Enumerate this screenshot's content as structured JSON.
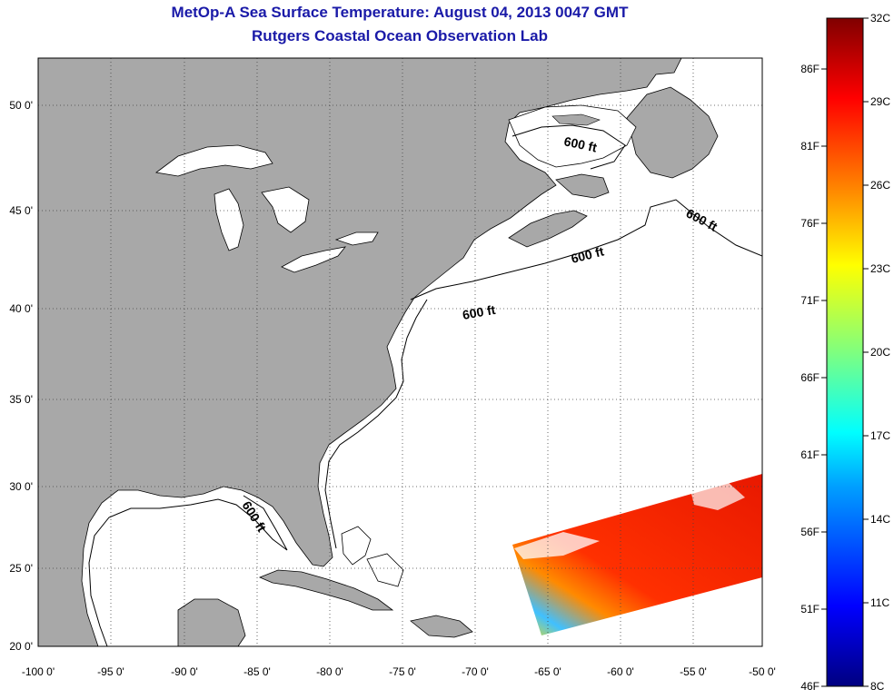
{
  "title": "MetOp-A Sea Surface Temperature:  August 04, 2013 0047 GMT",
  "subtitle": "Rutgers Coastal Ocean Observation Lab",
  "x_ticks": [
    "-100 0'",
    "-95 0'",
    "-90 0'",
    "-85 0'",
    "-80 0'",
    "-75 0'",
    "-70 0'",
    "-65 0'",
    "-60 0'",
    "-55 0'",
    "-50 0'"
  ],
  "y_ticks": [
    "50 0'",
    "45 0'",
    "40 0'",
    "35 0'",
    "30 0'",
    "25 0'",
    "20 0'"
  ],
  "depth_labels": [
    "600 ft",
    "600 ft",
    "600 ft",
    "600 ft",
    "600 ft"
  ],
  "colorbar": {
    "fahrenheit": [
      "86F",
      "81F",
      "76F",
      "71F",
      "66F",
      "61F",
      "56F",
      "51F",
      "46F"
    ],
    "celsius": [
      "32C",
      "29C",
      "26C",
      "23C",
      "20C",
      "17C",
      "14C",
      "11C",
      "8C"
    ],
    "colors": [
      "#000080",
      "#0000ff",
      "#00a0ff",
      "#00ffff",
      "#7fff7f",
      "#ffff00",
      "#ff8000",
      "#ff0000",
      "#800000"
    ]
  },
  "colors": {
    "land": "#a8a8a8",
    "ocean": "#ffffff",
    "title": "#1a1aa8"
  }
}
